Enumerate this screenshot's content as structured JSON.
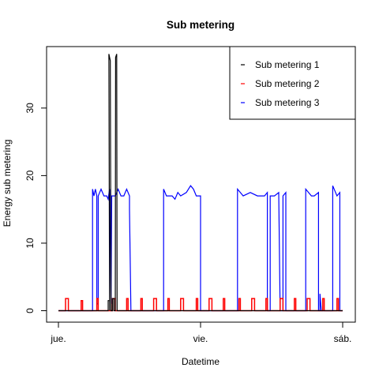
{
  "chart_data": {
    "type": "line",
    "title": "Sub metering",
    "xlabel": "Datetime",
    "ylabel": "Energy sub metering",
    "x_range_days": [
      0,
      2
    ],
    "x_ticks": [
      {
        "day": 0,
        "label": "jue."
      },
      {
        "day": 1,
        "label": "vie."
      },
      {
        "day": 2,
        "label": "sáb."
      }
    ],
    "ylim": [
      -1.5,
      39
    ],
    "y_ticks": [
      0,
      10,
      20,
      30
    ],
    "grid": false,
    "legend_position": "top-right",
    "series": [
      {
        "name": "Sub metering 1",
        "color": "#000000",
        "points": [
          [
            0,
            0
          ],
          [
            0.35,
            0
          ],
          [
            0.35,
            1.5
          ],
          [
            0.36,
            1.5
          ],
          [
            0.36,
            0
          ],
          [
            0.355,
            38
          ],
          [
            0.365,
            37
          ],
          [
            0.37,
            0
          ],
          [
            0.38,
            0
          ],
          [
            0.38,
            1.8
          ],
          [
            0.39,
            1.8
          ],
          [
            0.39,
            0
          ],
          [
            0.4,
            0
          ],
          [
            0.402,
            37.5
          ],
          [
            0.41,
            38
          ],
          [
            0.413,
            0
          ],
          [
            0.42,
            0
          ],
          [
            2,
            0
          ]
        ]
      },
      {
        "name": "Sub metering 2",
        "color": "#ff0000",
        "points": [
          [
            0,
            0
          ],
          [
            0.05,
            0
          ],
          [
            0.05,
            1.8
          ],
          [
            0.07,
            1.8
          ],
          [
            0.07,
            0
          ],
          [
            0.16,
            0
          ],
          [
            0.16,
            1.5
          ],
          [
            0.17,
            1.5
          ],
          [
            0.17,
            0
          ],
          [
            0.27,
            0
          ],
          [
            0.27,
            1.8
          ],
          [
            0.28,
            1.8
          ],
          [
            0.28,
            0
          ],
          [
            0.38,
            0
          ],
          [
            0.38,
            1.8
          ],
          [
            0.4,
            1.8
          ],
          [
            0.4,
            0
          ],
          [
            0.48,
            0
          ],
          [
            0.48,
            1.8
          ],
          [
            0.49,
            1.8
          ],
          [
            0.49,
            0
          ],
          [
            0.58,
            0
          ],
          [
            0.58,
            1.8
          ],
          [
            0.59,
            1.8
          ],
          [
            0.59,
            0
          ],
          [
            0.67,
            0
          ],
          [
            0.67,
            1.8
          ],
          [
            0.69,
            1.8
          ],
          [
            0.69,
            0
          ],
          [
            0.77,
            0
          ],
          [
            0.77,
            1.8
          ],
          [
            0.78,
            1.8
          ],
          [
            0.78,
            0
          ],
          [
            0.86,
            0
          ],
          [
            0.86,
            1.8
          ],
          [
            0.88,
            1.8
          ],
          [
            0.88,
            0
          ],
          [
            0.97,
            0
          ],
          [
            0.97,
            1.8
          ],
          [
            0.98,
            1.8
          ],
          [
            0.98,
            0
          ],
          [
            1.06,
            0
          ],
          [
            1.06,
            1.8
          ],
          [
            1.08,
            1.8
          ],
          [
            1.08,
            0
          ],
          [
            1.16,
            0
          ],
          [
            1.16,
            1.8
          ],
          [
            1.17,
            1.8
          ],
          [
            1.17,
            0
          ],
          [
            1.27,
            0
          ],
          [
            1.27,
            1.8
          ],
          [
            1.28,
            1.8
          ],
          [
            1.28,
            0
          ],
          [
            1.36,
            0
          ],
          [
            1.36,
            1.8
          ],
          [
            1.38,
            1.8
          ],
          [
            1.38,
            0
          ],
          [
            1.46,
            0
          ],
          [
            1.46,
            1.8
          ],
          [
            1.47,
            1.8
          ],
          [
            1.47,
            0
          ],
          [
            1.56,
            0
          ],
          [
            1.56,
            1.8
          ],
          [
            1.58,
            1.8
          ],
          [
            1.58,
            0
          ],
          [
            1.66,
            0
          ],
          [
            1.66,
            1.8
          ],
          [
            1.67,
            1.8
          ],
          [
            1.67,
            0
          ],
          [
            1.75,
            0
          ],
          [
            1.75,
            1.8
          ],
          [
            1.77,
            1.8
          ],
          [
            1.77,
            0
          ],
          [
            1.86,
            0
          ],
          [
            1.86,
            1.8
          ],
          [
            1.87,
            1.8
          ],
          [
            1.87,
            0
          ],
          [
            1.96,
            0
          ],
          [
            1.96,
            1.8
          ],
          [
            1.97,
            1.8
          ],
          [
            1.97,
            0
          ],
          [
            2,
            0
          ]
        ]
      },
      {
        "name": "Sub metering 3",
        "color": "#0000ff",
        "points": [
          [
            0,
            0
          ],
          [
            0.24,
            0
          ],
          [
            0.24,
            18
          ],
          [
            0.25,
            17
          ],
          [
            0.26,
            18
          ],
          [
            0.27,
            17
          ],
          [
            0.27,
            1
          ],
          [
            0.28,
            1
          ],
          [
            0.28,
            17
          ],
          [
            0.3,
            18
          ],
          [
            0.32,
            17
          ],
          [
            0.34,
            17
          ],
          [
            0.35,
            16.5
          ],
          [
            0.36,
            18
          ],
          [
            0.37,
            1
          ],
          [
            0.375,
            17
          ],
          [
            0.4,
            17
          ],
          [
            0.42,
            18
          ],
          [
            0.44,
            17
          ],
          [
            0.46,
            17
          ],
          [
            0.48,
            18
          ],
          [
            0.5,
            17
          ],
          [
            0.5,
            15
          ],
          [
            0.51,
            0
          ],
          [
            0.74,
            0
          ],
          [
            0.74,
            18
          ],
          [
            0.76,
            17
          ],
          [
            0.8,
            17
          ],
          [
            0.82,
            16.5
          ],
          [
            0.84,
            17.5
          ],
          [
            0.86,
            17
          ],
          [
            0.9,
            17.5
          ],
          [
            0.93,
            18.5
          ],
          [
            0.95,
            18
          ],
          [
            0.97,
            17
          ],
          [
            1,
            17
          ],
          [
            1,
            0
          ],
          [
            1.26,
            0
          ],
          [
            1.26,
            18
          ],
          [
            1.3,
            17
          ],
          [
            1.35,
            17.5
          ],
          [
            1.4,
            17
          ],
          [
            1.45,
            17
          ],
          [
            1.47,
            17.5
          ],
          [
            1.47,
            0
          ],
          [
            1.49,
            0
          ],
          [
            1.49,
            17
          ],
          [
            1.52,
            17
          ],
          [
            1.55,
            17.5
          ],
          [
            1.56,
            0
          ],
          [
            1.58,
            0
          ],
          [
            1.58,
            17
          ],
          [
            1.6,
            17.5
          ],
          [
            1.6,
            0
          ],
          [
            1.74,
            0
          ],
          [
            1.74,
            18
          ],
          [
            1.78,
            17
          ],
          [
            1.8,
            17
          ],
          [
            1.83,
            17.5
          ],
          [
            1.83,
            0
          ],
          [
            1.84,
            0
          ],
          [
            1.84,
            2.5
          ],
          [
            1.85,
            0
          ],
          [
            1.93,
            0
          ],
          [
            1.93,
            18.5
          ],
          [
            1.96,
            17
          ],
          [
            1.98,
            17.5
          ],
          [
            1.98,
            0
          ],
          [
            2,
            0
          ]
        ]
      }
    ]
  }
}
